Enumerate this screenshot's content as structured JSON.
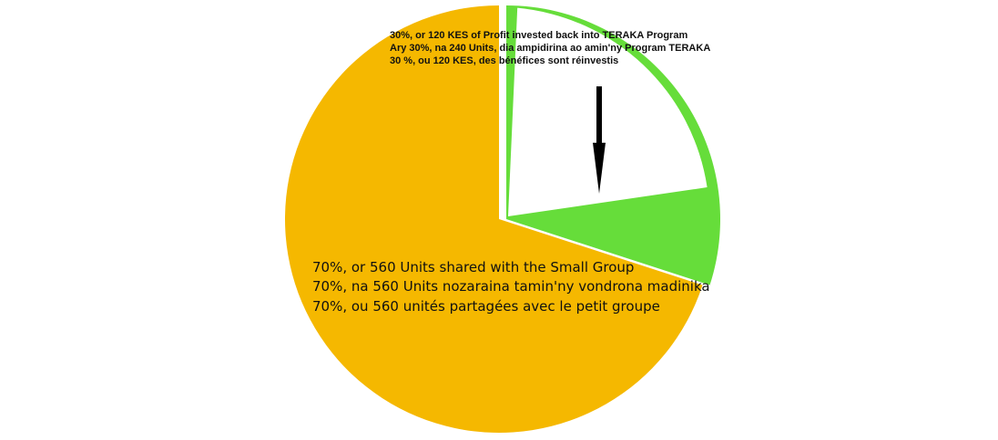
{
  "chart_data": {
    "type": "pie",
    "title": "",
    "slices": [
      {
        "name": "Small Group share",
        "value": 70,
        "color": "#f5b800",
        "exploded": false,
        "label_lines": [
          "70%, or 560 Units shared with the Small Group",
          "70%, na 560 Units nozaraina tamin'ny vondrona madinika",
          "70%, ou 560 unités partagées avec le petit groupe"
        ]
      },
      {
        "name": "TERAKA Program reinvestment",
        "value": 30,
        "color": "#66dd3a",
        "exploded": true,
        "label_lines": [
          "30%, or 120 KES of Profit invested back into TERAKA Program",
          "Ary 30%, na 240 Units, dia ampidirina ao amin'ny Program TERAKA",
          "30 %, ou 120 KES, des bénéfices sont réinvestis"
        ]
      }
    ],
    "annotations": [
      {
        "type": "arrow",
        "points_to": "TERAKA Program reinvestment",
        "color": "#000000"
      }
    ]
  }
}
